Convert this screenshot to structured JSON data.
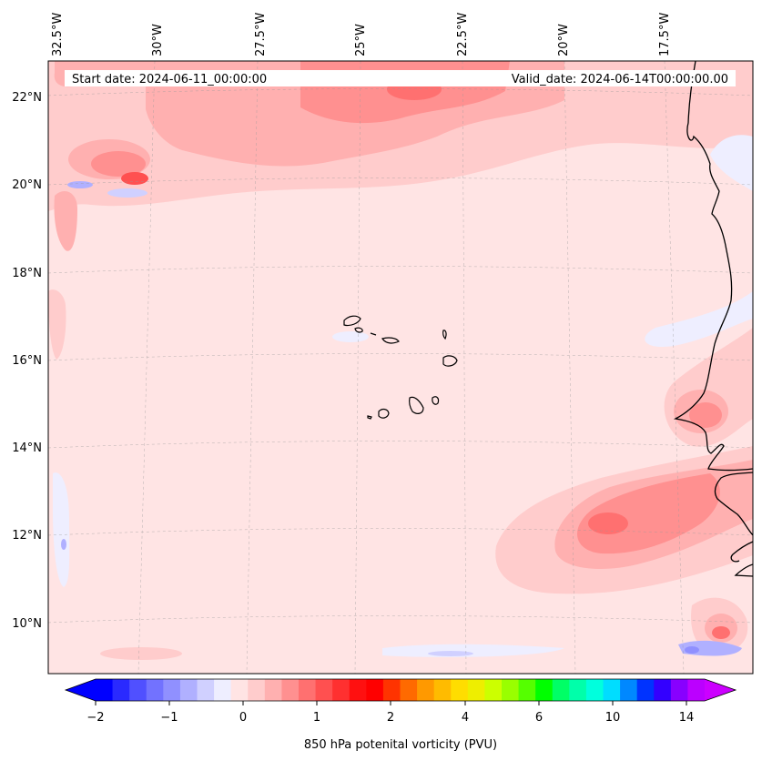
{
  "map": {
    "header": {
      "start_label": "Start date: 2024-06-11_00:00:00",
      "valid_label": "Valid_date: 2024-06-14T00:00:00.00"
    },
    "lon_labels": [
      "32.5°W",
      "30°W",
      "27.5°W",
      "25°W",
      "22.5°W",
      "20°W",
      "17.5°W"
    ],
    "lat_labels": [
      "22°N",
      "20°N",
      "18°N",
      "16°N",
      "14°N",
      "12°N",
      "10°N"
    ],
    "colorbar": {
      "tick_labels": [
        "−2",
        "−1",
        "0",
        "1",
        "2",
        "4",
        "6",
        "10",
        "14"
      ],
      "label": "850 hPa potenital vorticity (PVU)",
      "colors": [
        "#0000ff",
        "#2a2aff",
        "#5050ff",
        "#7272ff",
        "#9090ff",
        "#b0b0ff",
        "#d0d0ff",
        "#eeeeff",
        "#ffe4e4",
        "#ffcccc",
        "#ffb0b0",
        "#ff9090",
        "#ff7070",
        "#ff5050",
        "#ff3030",
        "#ff1010",
        "#ff0000",
        "#ff3300",
        "#ff6a00",
        "#ff9900",
        "#ffbb00",
        "#ffdd00",
        "#eeee00",
        "#ccff00",
        "#99ff00",
        "#55ff00",
        "#00ff00",
        "#00ff66",
        "#00ffaa",
        "#00ffdd",
        "#00ddff",
        "#0088ff",
        "#0033ff",
        "#3300ff",
        "#8800ff",
        "#bb00ff"
      ],
      "min_color": "#0000ff",
      "max_color": "#cc00ff"
    },
    "background_color": "#ffe4e4"
  }
}
